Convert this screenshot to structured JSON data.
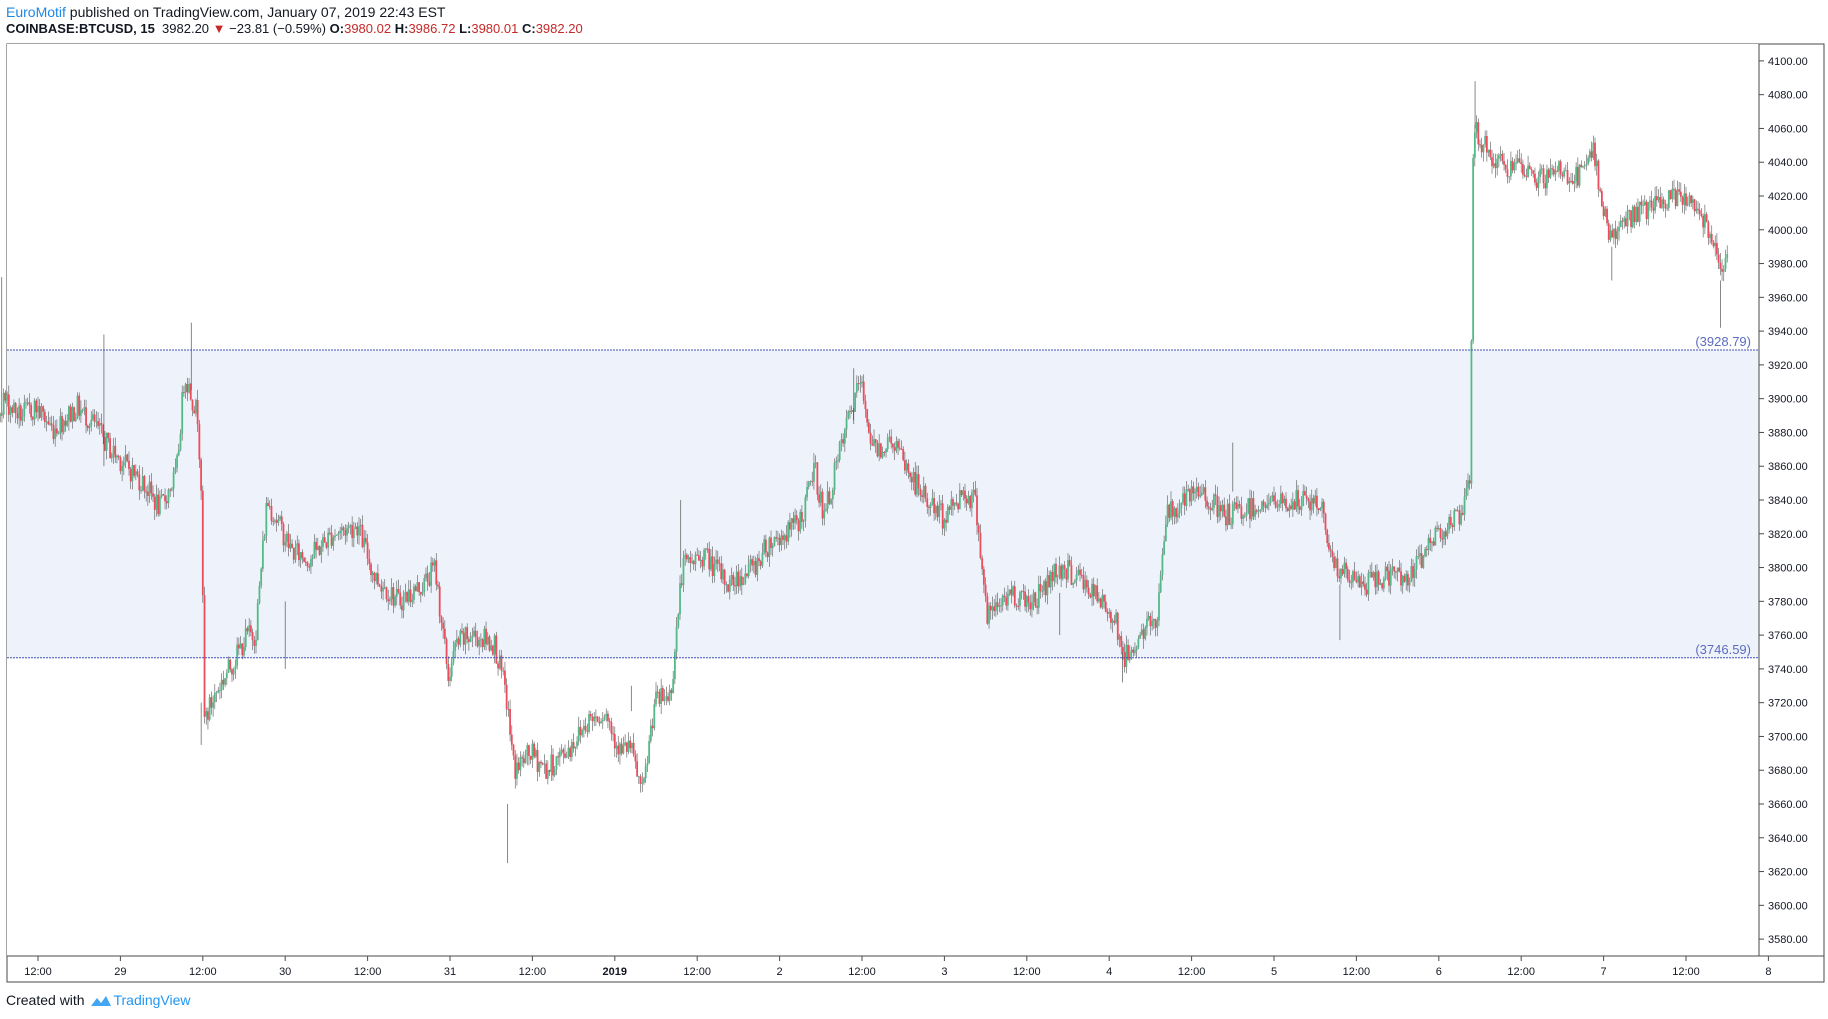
{
  "header": {
    "author": "EuroMotif",
    "published_text": " published on TradingView.com, January 07, 2019 22:43 EST",
    "symbol": "COINBASE:BTCUSD, 15",
    "last": "3982.20",
    "change": "−23.81 (−0.59%)",
    "o_label": "O:",
    "o_value": "3980.02",
    "h_label": "H:",
    "h_value": "3986.72",
    "l_label": "L:",
    "l_value": "3980.01",
    "c_label": "C:",
    "c_value": "3982.20"
  },
  "footer": {
    "created_with": "Created with",
    "brand": "TradingView"
  },
  "colors": {
    "up": "#53b987",
    "down": "#eb4d5c",
    "zone": "#eef3fb",
    "level_line": "#3f51b5",
    "level_label": "#5c6bc0"
  },
  "chart_data": {
    "type": "candlestick",
    "symbol": "COINBASE:BTCUSD",
    "interval": "15",
    "ylim": [
      3570,
      4110
    ],
    "y_ticks": [
      3580,
      3600,
      3620,
      3640,
      3660,
      3680,
      3700,
      3720,
      3740,
      3760,
      3780,
      3800,
      3820,
      3840,
      3860,
      3880,
      3900,
      3920,
      3940,
      3960,
      3980,
      4000,
      4020,
      4040,
      4060,
      4080,
      4100
    ],
    "x_ticks": [
      "12:00",
      "29",
      "12:00",
      "30",
      "12:00",
      "31",
      "12:00",
      "2019",
      "12:00",
      "2",
      "12:00",
      "3",
      "12:00",
      "4",
      "12:00",
      "5",
      "12:00",
      "6",
      "12:00",
      "7",
      "12:00",
      "8"
    ],
    "x_range_days": [
      0,
      10.85
    ],
    "x_ticks_day_pos": [
      0.5,
      1,
      1.5,
      2,
      2.5,
      3,
      3.5,
      4,
      4.5,
      5,
      5.5,
      6,
      6.5,
      7,
      7.5,
      8,
      8.5,
      9,
      9.5,
      10,
      10.5,
      11
    ],
    "levels": [
      {
        "price": 3928.79,
        "label": "(3928.79)"
      },
      {
        "price": 3746.59,
        "label": "(3746.59)"
      }
    ],
    "zone": [
      3746.59,
      3928.79
    ],
    "path_points": [
      [
        0.0,
        3612
      ],
      [
        0.08,
        3610
      ],
      [
        0.1,
        3630
      ],
      [
        0.12,
        3840
      ],
      [
        0.2,
        3858
      ],
      [
        0.25,
        3885
      ],
      [
        0.3,
        3900
      ],
      [
        0.4,
        3890
      ],
      [
        0.5,
        3895
      ],
      [
        0.6,
        3882
      ],
      [
        0.75,
        3895
      ],
      [
        0.85,
        3885
      ],
      [
        0.95,
        3870
      ],
      [
        1.05,
        3860
      ],
      [
        1.15,
        3850
      ],
      [
        1.25,
        3835
      ],
      [
        1.35,
        3855
      ],
      [
        1.4,
        3915
      ],
      [
        1.48,
        3890
      ],
      [
        1.5,
        3850
      ],
      [
        1.52,
        3710
      ],
      [
        1.6,
        3728
      ],
      [
        1.7,
        3745
      ],
      [
        1.78,
        3760
      ],
      [
        1.83,
        3760
      ],
      [
        1.9,
        3840
      ],
      [
        2.0,
        3820
      ],
      [
        2.05,
        3810
      ],
      [
        2.15,
        3805
      ],
      [
        2.3,
        3820
      ],
      [
        2.45,
        3825
      ],
      [
        2.55,
        3795
      ],
      [
        2.7,
        3780
      ],
      [
        2.85,
        3790
      ],
      [
        2.92,
        3800
      ],
      [
        3.0,
        3735
      ],
      [
        3.05,
        3755
      ],
      [
        3.15,
        3760
      ],
      [
        3.28,
        3755
      ],
      [
        3.35,
        3725
      ],
      [
        3.4,
        3680
      ],
      [
        3.5,
        3690
      ],
      [
        3.6,
        3680
      ],
      [
        3.75,
        3695
      ],
      [
        3.85,
        3710
      ],
      [
        3.95,
        3715
      ],
      [
        4.05,
        3690
      ],
      [
        4.1,
        3695
      ],
      [
        4.18,
        3665
      ],
      [
        4.25,
        3720
      ],
      [
        4.35,
        3725
      ],
      [
        4.42,
        3800
      ],
      [
        4.55,
        3808
      ],
      [
        4.7,
        3790
      ],
      [
        4.85,
        3800
      ],
      [
        4.95,
        3815
      ],
      [
        5.05,
        3820
      ],
      [
        5.15,
        3830
      ],
      [
        5.22,
        3860
      ],
      [
        5.28,
        3830
      ],
      [
        5.42,
        3885
      ],
      [
        5.5,
        3910
      ],
      [
        5.58,
        3870
      ],
      [
        5.7,
        3875
      ],
      [
        5.8,
        3855
      ],
      [
        5.9,
        3840
      ],
      [
        6.0,
        3830
      ],
      [
        6.05,
        3835
      ],
      [
        6.12,
        3845
      ],
      [
        6.2,
        3840
      ],
      [
        6.27,
        3770
      ],
      [
        6.4,
        3785
      ],
      [
        6.55,
        3780
      ],
      [
        6.7,
        3800
      ],
      [
        6.82,
        3795
      ],
      [
        6.95,
        3780
      ],
      [
        7.05,
        3770
      ],
      [
        7.1,
        3745
      ],
      [
        7.2,
        3760
      ],
      [
        7.3,
        3770
      ],
      [
        7.35,
        3830
      ],
      [
        7.45,
        3838
      ],
      [
        7.58,
        3845
      ],
      [
        7.7,
        3830
      ],
      [
        7.85,
        3835
      ],
      [
        7.95,
        3838
      ],
      [
        8.1,
        3838
      ],
      [
        8.2,
        3840
      ],
      [
        8.3,
        3835
      ],
      [
        8.38,
        3800
      ],
      [
        8.45,
        3795
      ],
      [
        8.55,
        3790
      ],
      [
        8.7,
        3795
      ],
      [
        8.85,
        3795
      ],
      [
        8.95,
        3815
      ],
      [
        9.05,
        3825
      ],
      [
        9.15,
        3830
      ],
      [
        9.2,
        3850
      ],
      [
        9.22,
        4060
      ],
      [
        9.35,
        4040
      ],
      [
        9.5,
        4035
      ],
      [
        9.65,
        4030
      ],
      [
        9.75,
        4035
      ],
      [
        9.85,
        4030
      ],
      [
        9.95,
        4045
      ],
      [
        10.05,
        3995
      ],
      [
        10.2,
        4010
      ],
      [
        10.35,
        4015
      ],
      [
        10.5,
        4020
      ],
      [
        10.6,
        4010
      ],
      [
        10.68,
        3995
      ],
      [
        10.72,
        3980
      ],
      [
        10.76,
        3985
      ]
    ],
    "wick_spikes": [
      [
        0.28,
        3972,
        3890
      ],
      [
        0.9,
        3938,
        3860
      ],
      [
        1.43,
        3945,
        3905
      ],
      [
        1.49,
        3695,
        3720
      ],
      [
        2.0,
        3740,
        3780
      ],
      [
        3.35,
        3625,
        3660
      ],
      [
        4.1,
        3715,
        3730
      ],
      [
        4.4,
        3840,
        3800
      ],
      [
        5.45,
        3918,
        3885
      ],
      [
        6.7,
        3760,
        3785
      ],
      [
        7.08,
        3732,
        3750
      ],
      [
        7.75,
        3874,
        3845
      ],
      [
        8.4,
        3757,
        3790
      ],
      [
        9.22,
        4088,
        4060
      ],
      [
        10.05,
        3970,
        3990
      ],
      [
        10.71,
        3942,
        3970
      ]
    ]
  }
}
